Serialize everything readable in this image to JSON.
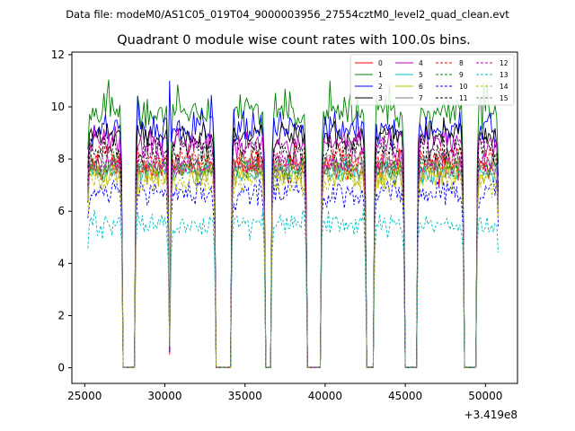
{
  "chart_data": {
    "type": "line",
    "suptitle": "Data file: modeM0/AS1C05_019T04_9000003956_27554cztM0_level2_quad_clean.evt",
    "title": "Quadrant 0 module wise count rates with 100.0s bins.",
    "xlabel": "",
    "ylabel": "",
    "x_offset_label": "+3.419e8",
    "xlim": [
      24200,
      52000
    ],
    "ylim": [
      -0.6,
      12.1
    ],
    "x_ticks": [
      25000,
      30000,
      35000,
      40000,
      45000,
      50000
    ],
    "x_tick_labels": [
      "25000",
      "30000",
      "35000",
      "40000",
      "45000",
      "50000"
    ],
    "y_ticks": [
      0,
      2,
      4,
      6,
      8,
      10,
      12
    ],
    "y_tick_labels": [
      "0",
      "2",
      "4",
      "6",
      "8",
      "10",
      "12"
    ],
    "bin_size_s": 100,
    "x_start": 25200,
    "x_end": 50800,
    "on_segments": [
      [
        25200,
        27300
      ],
      [
        28200,
        30200
      ],
      [
        30400,
        33150
      ],
      [
        34150,
        36200
      ],
      [
        36700,
        38800
      ],
      [
        39800,
        42500
      ],
      [
        43100,
        44900
      ],
      [
        45800,
        48600
      ],
      [
        49500,
        50800
      ]
    ],
    "spike_x": 30300,
    "spike_values": [
      0.5,
      0.7,
      11.0,
      0.6,
      0.9,
      1.0,
      0.8,
      0.9,
      0.7,
      0.9,
      0.6,
      0.9,
      0.7,
      0.9,
      0.8,
      0.8
    ],
    "legend_location": "upper right",
    "series": [
      {
        "name": "0",
        "color": "#ff0000",
        "style": "solid",
        "mean": 7.7,
        "noise": 0.35
      },
      {
        "name": "1",
        "color": "#008000",
        "style": "solid",
        "mean": 9.8,
        "noise": 0.35
      },
      {
        "name": "2",
        "color": "#0000ff",
        "style": "solid",
        "mean": 9.1,
        "noise": 0.4
      },
      {
        "name": "3",
        "color": "#000000",
        "style": "solid",
        "mean": 8.9,
        "noise": 0.35
      },
      {
        "name": "4",
        "color": "#bf00bf",
        "style": "solid",
        "mean": 8.6,
        "noise": 0.35
      },
      {
        "name": "5",
        "color": "#00bfbf",
        "style": "solid",
        "mean": 7.5,
        "noise": 0.3
      },
      {
        "name": "6",
        "color": "#bfbf00",
        "style": "solid",
        "mean": 7.4,
        "noise": 0.35
      },
      {
        "name": "7",
        "color": "#808080",
        "style": "solid",
        "mean": 7.9,
        "noise": 0.3
      },
      {
        "name": "8",
        "color": "#ff0000",
        "style": "dashed",
        "mean": 8.0,
        "noise": 0.35
      },
      {
        "name": "9",
        "color": "#008000",
        "style": "dashed",
        "mean": 7.7,
        "noise": 0.35
      },
      {
        "name": "10",
        "color": "#0000ff",
        "style": "dashed",
        "mean": 6.7,
        "noise": 0.35
      },
      {
        "name": "11",
        "color": "#000000",
        "style": "dashed",
        "mean": 8.4,
        "noise": 0.35
      },
      {
        "name": "12",
        "color": "#bf00bf",
        "style": "dashed",
        "mean": 7.8,
        "noise": 0.3
      },
      {
        "name": "13",
        "color": "#00bfbf",
        "style": "dashed",
        "mean": 5.5,
        "noise": 0.3
      },
      {
        "name": "14",
        "color": "#bfbf00",
        "style": "dashed",
        "mean": 7.2,
        "noise": 0.35
      },
      {
        "name": "15",
        "color": "#808080",
        "style": "dashed",
        "mean": 7.6,
        "noise": 0.3
      }
    ]
  }
}
